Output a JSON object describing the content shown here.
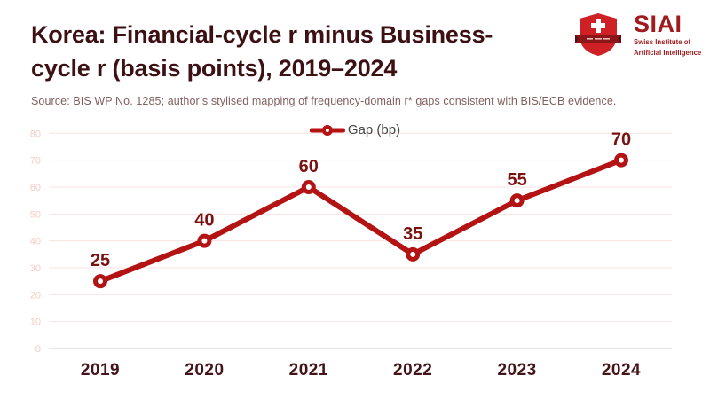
{
  "header": {
    "title_line1": "Korea: Financial-cycle r minus Business-",
    "title_line2": "cycle r (basis points), 2019–2024",
    "source": "Source: BIS WP No. 1285; author’s stylised mapping of frequency-domain r* gaps consistent with BIS/ECB evidence."
  },
  "logo": {
    "acronym": "SIAI",
    "name_line1": "Swiss Institute of",
    "name_line2": "Artificial Intelligence"
  },
  "chart_data": {
    "type": "line",
    "title": "Korea: Financial-cycle r minus Business-cycle r (basis points), 2019–2024",
    "categories": [
      "2019",
      "2020",
      "2021",
      "2022",
      "2023",
      "2024"
    ],
    "series": [
      {
        "name": "Gap (bp)",
        "values": [
          25,
          40,
          60,
          35,
          55,
          70
        ]
      }
    ],
    "xlabel": "",
    "ylabel": "",
    "ylim": [
      0,
      80
    ],
    "yticks": [
      0,
      10,
      20,
      30,
      40,
      50,
      60,
      70,
      80
    ],
    "grid": true,
    "legend_position": "top-center",
    "data_labels": true
  },
  "colors": {
    "title": "#3d1114",
    "line": "#b31312",
    "data_label": "#7a1212",
    "axis_label": "#441418",
    "ytick_label": "#f2cdc8",
    "gridline": "#fae3e0",
    "zero_line": "#d6cbca",
    "legend_text": "#454545",
    "source_text": "#80605e",
    "logo_red": "#a01b1e",
    "shield_red": "#cf2026",
    "ribbon_red": "#8a1619"
  }
}
